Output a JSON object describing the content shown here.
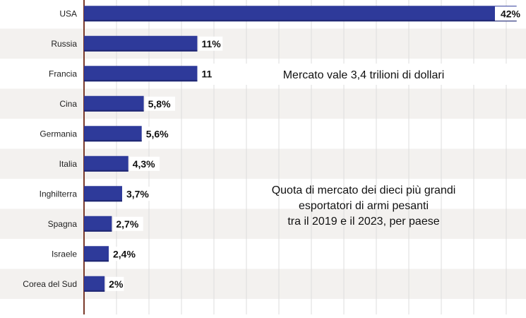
{
  "chart_data": {
    "type": "bar",
    "orientation": "horizontal",
    "categories": [
      "USA",
      "Russia",
      "Francia",
      "Cina",
      "Germania",
      "Italia",
      "Inghilterra",
      "Spagna",
      "Israele",
      "Corea del Sud"
    ],
    "values": [
      42,
      11,
      11,
      5.8,
      5.6,
      4.3,
      3.7,
      2.7,
      2.4,
      2
    ],
    "value_labels": [
      "42%",
      "11%",
      "11%",
      "5,8%",
      "5,6%",
      "4,3%",
      "3,7%",
      "2,7%",
      "2,4%",
      "2%"
    ],
    "xlim": [
      0,
      42.5
    ],
    "grid": true,
    "bar_color": "#2e3a9a",
    "annotations": [
      {
        "id": "market",
        "lines": [
          "Mercato vale 3,4 trilioni di dollari"
        ]
      },
      {
        "id": "description",
        "lines": [
          "Quota di mercato dei dieci più grandi",
          "esportatori di armi pesanti",
          "tra il 2019 e il 2023, per paese"
        ]
      }
    ]
  }
}
